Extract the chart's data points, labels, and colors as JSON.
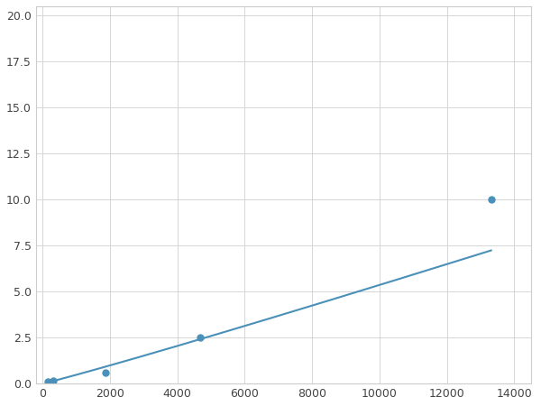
{
  "x": [
    156,
    313,
    625,
    1875,
    4688,
    13313
  ],
  "y": [
    0.1,
    0.15,
    0.2,
    0.6,
    2.5,
    10.0
  ],
  "line_color": "#4a90b8",
  "marker_color": "#4a90b8",
  "marker_size": 5,
  "xlim": [
    -200,
    14500
  ],
  "ylim": [
    0,
    20.5
  ],
  "xticks": [
    0,
    2000,
    4000,
    6000,
    8000,
    10000,
    12000,
    14000
  ],
  "yticks": [
    0.0,
    2.5,
    5.0,
    7.5,
    10.0,
    12.5,
    15.0,
    17.5,
    20.0
  ],
  "grid": true,
  "background_color": "#ffffff",
  "line_width": 1.5
}
